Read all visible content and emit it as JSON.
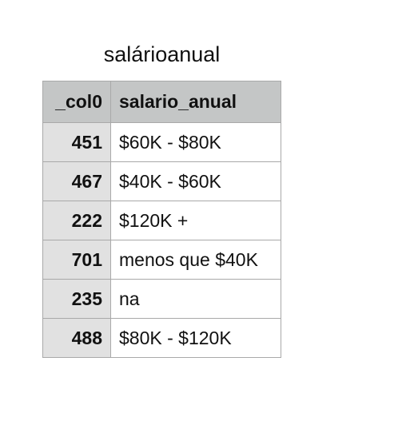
{
  "title": "salárioanual",
  "table": {
    "headers": [
      "_col0",
      "salario_anual"
    ],
    "rows": [
      {
        "index": "451",
        "value": "$60K - $80K"
      },
      {
        "index": "467",
        "value": "$40K - $60K"
      },
      {
        "index": "222",
        "value": "$120K +"
      },
      {
        "index": "701",
        "value": "menos que $40K"
      },
      {
        "index": "235",
        "value": "na"
      },
      {
        "index": "488",
        "value": "$80K - $120K"
      }
    ]
  }
}
